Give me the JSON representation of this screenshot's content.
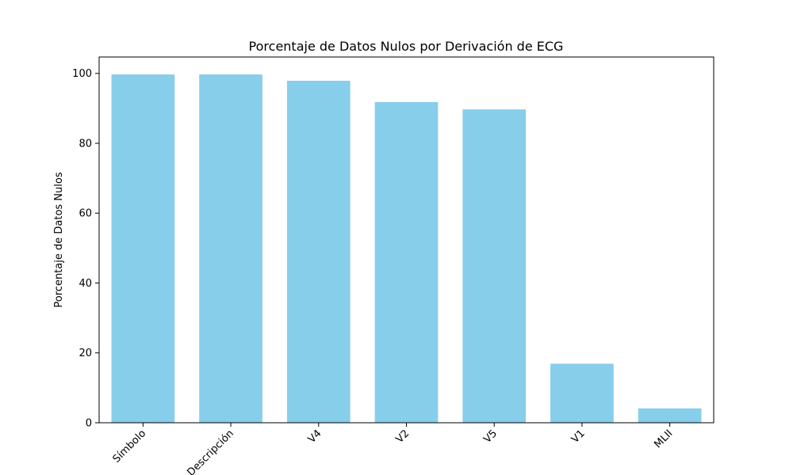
{
  "chart_data": {
    "type": "bar",
    "title": "Porcentaje de Datos Nulos por Derivación de ECG",
    "xlabel": "",
    "ylabel": "Porcentaje de Datos Nulos",
    "categories": [
      "Símbolo",
      "Descripción",
      "V4",
      "V2",
      "V5",
      "V1",
      "MLII"
    ],
    "values": [
      99.7,
      99.7,
      97.9,
      91.8,
      89.7,
      16.9,
      4.1
    ],
    "ylim": [
      0,
      104.7
    ],
    "yticks": [
      0,
      20,
      40,
      60,
      80,
      100
    ],
    "bar_color": "#87CEEB",
    "grid": false,
    "x_tick_rotation": 45
  }
}
